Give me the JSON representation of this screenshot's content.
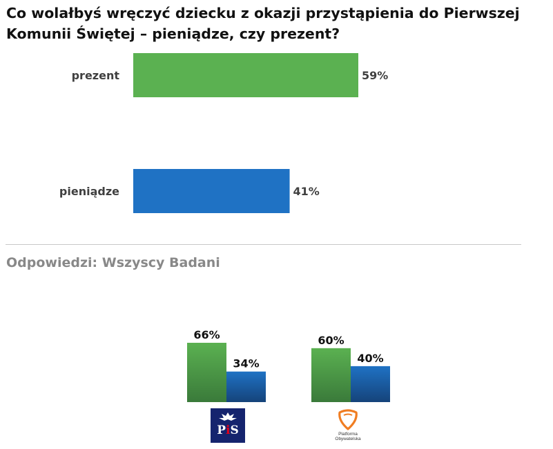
{
  "title": "Co wolałbyś wręczyć dziecku z okazji przystąpienia do Pierwszej Komunii Świętej – pieniądze, czy prezent?",
  "subtitle": "Odpowiedzi: Wszyscy Badani",
  "colors": {
    "green": "#5bb151",
    "blue": "#1f72c4",
    "green_dark": "#3a7a3a",
    "blue_dark": "#15437a"
  },
  "chart_data": [
    {
      "type": "bar",
      "orientation": "horizontal",
      "categories": [
        "prezent",
        "pieniądze"
      ],
      "values": [
        59,
        41
      ],
      "value_labels": [
        "59%",
        "41%"
      ],
      "colors": [
        "#5bb151",
        "#1f72c4"
      ],
      "title": "Co wolałbyś wręczyć dziecku z okazji przystąpienia do Pierwszej Komunii Świętej – pieniądze, czy prezent?",
      "xlim": [
        0,
        100
      ],
      "grid": false
    },
    {
      "type": "bar",
      "orientation": "vertical",
      "categories": [
        "PiS",
        "Platforma Obywatelska"
      ],
      "series": [
        {
          "values": [
            66,
            60
          ],
          "labels": [
            "66%",
            "60%"
          ],
          "color": "#5bb151"
        },
        {
          "values": [
            34,
            40
          ],
          "labels": [
            "34%",
            "40%"
          ],
          "color": "#1f72c4"
        }
      ],
      "ylim": [
        0,
        100
      ],
      "grid": false
    }
  ],
  "logos": {
    "pis": {
      "text_p": "P",
      "text_i": "i",
      "text_s": "S"
    },
    "po": {
      "line1": "Platforma",
      "line2": "Obywatelska"
    }
  }
}
